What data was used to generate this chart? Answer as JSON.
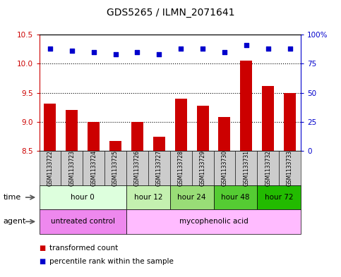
{
  "title": "GDS5265 / ILMN_2071641",
  "samples": [
    "GSM1133722",
    "GSM1133723",
    "GSM1133724",
    "GSM1133725",
    "GSM1133726",
    "GSM1133727",
    "GSM1133728",
    "GSM1133729",
    "GSM1133730",
    "GSM1133731",
    "GSM1133732",
    "GSM1133733"
  ],
  "bar_values": [
    9.32,
    9.2,
    9.0,
    8.67,
    9.0,
    8.75,
    9.4,
    9.28,
    9.08,
    10.05,
    9.62,
    9.5
  ],
  "dot_values": [
    88,
    86,
    85,
    83,
    85,
    83,
    88,
    88,
    85,
    91,
    88,
    88
  ],
  "ylim_left": [
    8.5,
    10.5
  ],
  "ylim_right": [
    0,
    100
  ],
  "yticks_left": [
    8.5,
    9.0,
    9.5,
    10.0,
    10.5
  ],
  "yticks_right": [
    0,
    25,
    50,
    75,
    100
  ],
  "ytick_labels_right": [
    "0",
    "25",
    "50",
    "75",
    "100%"
  ],
  "bar_color": "#cc0000",
  "dot_color": "#0000cc",
  "time_groups": [
    {
      "label": "hour 0",
      "start": 0,
      "end": 3,
      "color": "#ddffdd"
    },
    {
      "label": "hour 12",
      "start": 4,
      "end": 5,
      "color": "#bbeeaa"
    },
    {
      "label": "hour 24",
      "start": 6,
      "end": 7,
      "color": "#88dd66"
    },
    {
      "label": "hour 48",
      "start": 8,
      "end": 9,
      "color": "#55cc33"
    },
    {
      "label": "hour 72",
      "start": 10,
      "end": 11,
      "color": "#22bb00"
    }
  ],
  "agent_untreated": {
    "label": "untreated control",
    "start": 0,
    "end": 3,
    "color": "#ee88ee"
  },
  "agent_treated": {
    "label": "mycophenolic acid",
    "start": 4,
    "end": 11,
    "color": "#ffbbff"
  },
  "legend_items": [
    {
      "color": "#cc0000",
      "label": "transformed count"
    },
    {
      "color": "#0000cc",
      "label": "percentile rank within the sample"
    }
  ]
}
